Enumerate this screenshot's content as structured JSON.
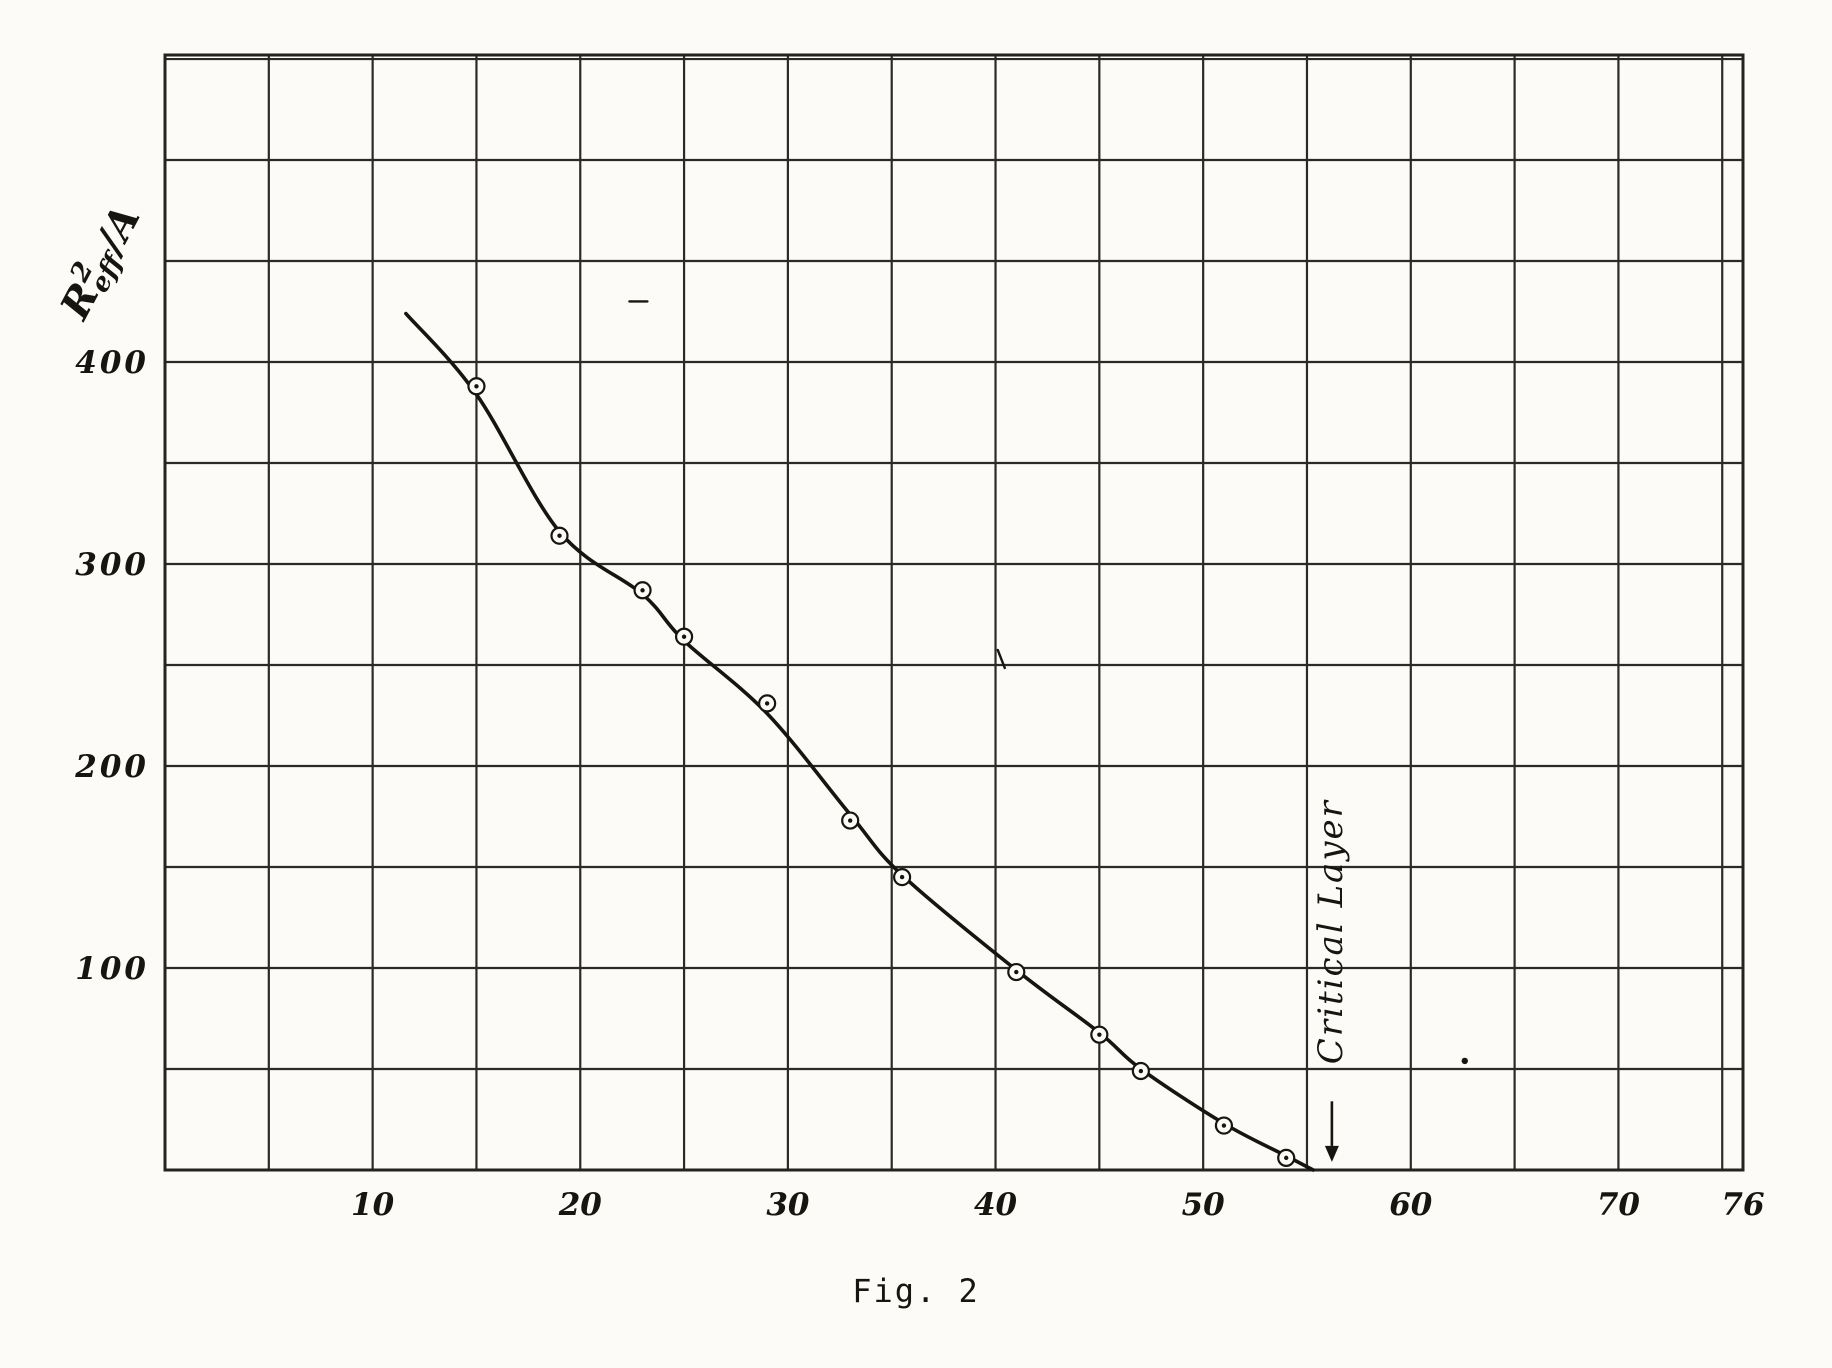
{
  "figure": {
    "caption": "Fig. 2",
    "y_axis_label": {
      "base": "R",
      "sup": "2",
      "sub": "eff",
      "suffix": "/A"
    }
  },
  "chart_data": {
    "type": "scatter",
    "title": "",
    "xlabel": "",
    "ylabel": "R^2_eff / A",
    "xlim": [
      0,
      76
    ],
    "ylim": [
      0,
      552
    ],
    "grid": {
      "x_step": 5,
      "x_max": 75,
      "y_step": 50,
      "y_max": 550
    },
    "x_ticks": [
      {
        "value": 10,
        "label": "10"
      },
      {
        "value": 20,
        "label": "20"
      },
      {
        "value": 30,
        "label": "30"
      },
      {
        "value": 40,
        "label": "40"
      },
      {
        "value": 50,
        "label": "50"
      },
      {
        "value": 60,
        "label": "60"
      },
      {
        "value": 70,
        "label": "70"
      },
      {
        "value": 76,
        "label": "76"
      }
    ],
    "y_ticks": [
      {
        "value": 100,
        "label": "100"
      },
      {
        "value": 200,
        "label": "200"
      },
      {
        "value": 300,
        "label": "300"
      },
      {
        "value": 400,
        "label": "400"
      }
    ],
    "points": [
      [
        15,
        388
      ],
      [
        19,
        314
      ],
      [
        23,
        287
      ],
      [
        25,
        264
      ],
      [
        29,
        231
      ],
      [
        33,
        173
      ],
      [
        35.5,
        145
      ],
      [
        41,
        98
      ],
      [
        45,
        67
      ],
      [
        47,
        49
      ],
      [
        51,
        22
      ],
      [
        54,
        6
      ]
    ],
    "curve": [
      [
        11.6,
        424
      ],
      [
        15,
        384
      ],
      [
        19,
        316
      ],
      [
        23,
        285
      ],
      [
        25,
        262
      ],
      [
        29,
        226
      ],
      [
        33,
        176
      ],
      [
        35.5,
        146
      ],
      [
        41,
        99
      ],
      [
        45,
        68
      ],
      [
        47,
        50
      ],
      [
        51,
        23
      ],
      [
        54,
        7
      ],
      [
        55.3,
        0
      ]
    ],
    "annotation": {
      "text": "Critical Layer",
      "x": 56.2,
      "text_center_y": 118,
      "arrow_top_y": 34,
      "arrow_tip_y": 4
    },
    "artifacts": [
      {
        "type": "dash",
        "x": 22.8,
        "y": 430
      },
      {
        "type": "stroke",
        "x": 40.3,
        "y": 253
      },
      {
        "type": "dot",
        "x": 62.6,
        "y": 54
      }
    ]
  }
}
